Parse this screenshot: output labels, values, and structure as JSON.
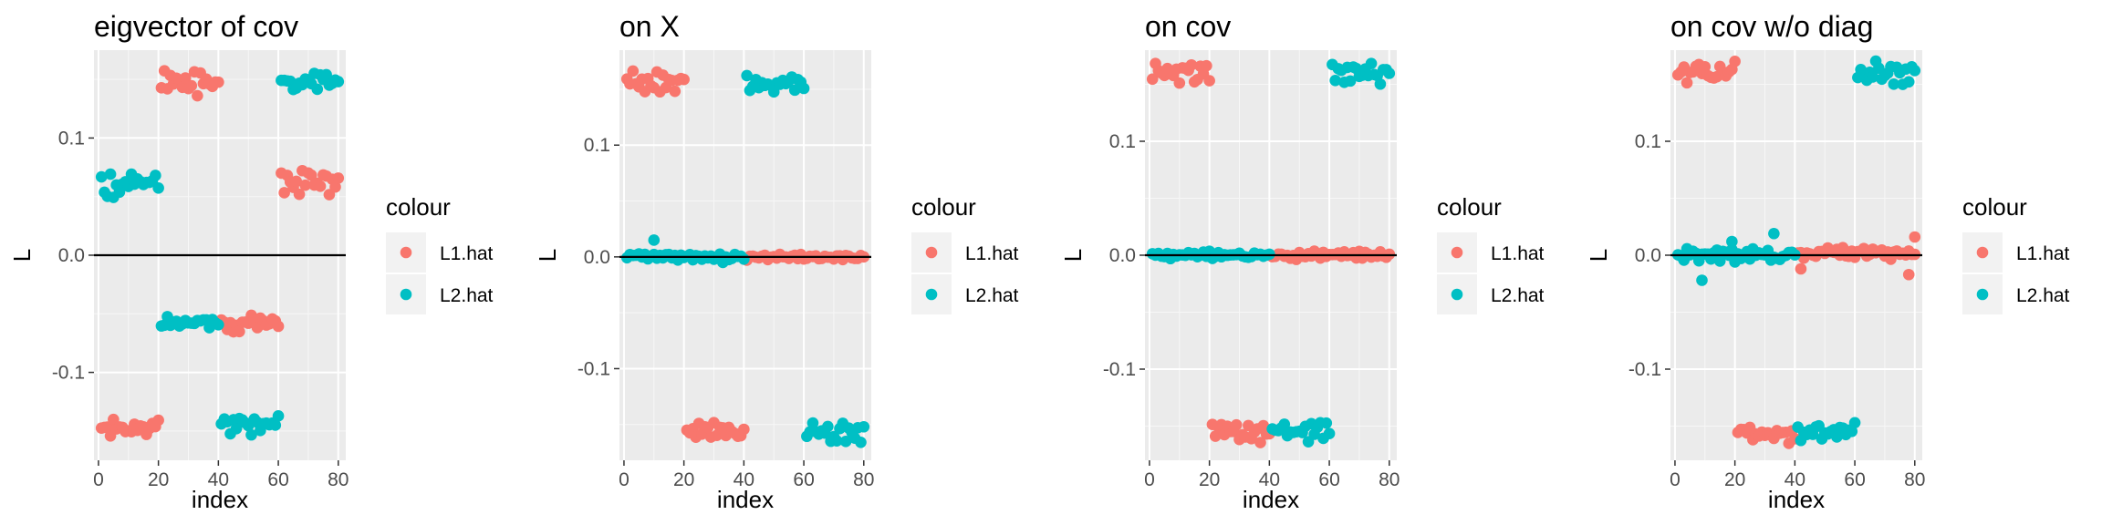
{
  "chart_data": [
    {
      "type": "scatter",
      "title": "eigvector of cov",
      "xlabel": "index",
      "ylabel": "L",
      "xlim": [
        -1.5,
        82.5
      ],
      "ylim": [
        -0.175,
        0.175
      ],
      "xticks": [
        0,
        20,
        40,
        60,
        80
      ],
      "xtick_labels": [
        "0",
        "20",
        "40",
        "60",
        "80"
      ],
      "yticks": [
        0.1,
        0.0,
        -0.1
      ],
      "ytick_labels": [
        "0.1",
        "0.0",
        "-0.1"
      ],
      "hline": 0,
      "grid": true,
      "legend": {
        "title": "colour",
        "position": "right",
        "entries": [
          "L1.hat",
          "L2.hat"
        ]
      },
      "series": [
        {
          "name": "L1.hat",
          "color": "#F8766D",
          "segments": [
            {
              "x_start": 1,
              "x_end": 20,
              "center": -0.148,
              "amplitude": 0.01
            },
            {
              "x_start": 21,
              "x_end": 40,
              "center": 0.147,
              "amplitude": 0.011
            },
            {
              "x_start": 41,
              "x_end": 60,
              "center": -0.058,
              "amplitude": 0.009
            },
            {
              "x_start": 61,
              "x_end": 80,
              "center": 0.061,
              "amplitude": 0.013
            }
          ]
        },
        {
          "name": "L2.hat",
          "color": "#00BFC4",
          "segments": [
            {
              "x_start": 1,
              "x_end": 20,
              "center": 0.06,
              "amplitude": 0.012
            },
            {
              "x_start": 21,
              "x_end": 40,
              "center": -0.058,
              "amplitude": 0.009
            },
            {
              "x_start": 41,
              "x_end": 60,
              "center": -0.145,
              "amplitude": 0.011
            },
            {
              "x_start": 61,
              "x_end": 80,
              "center": 0.148,
              "amplitude": 0.012
            }
          ]
        }
      ]
    },
    {
      "type": "scatter",
      "title": "on X",
      "xlabel": "index",
      "ylabel": "L",
      "xlim": [
        -1.5,
        82.5
      ],
      "ylim": [
        -0.182,
        0.185
      ],
      "xticks": [
        0,
        20,
        40,
        60,
        80
      ],
      "xtick_labels": [
        "0",
        "20",
        "40",
        "60",
        "80"
      ],
      "yticks": [
        0.1,
        0.0,
        -0.1
      ],
      "ytick_labels": [
        "0.1",
        "0.0",
        "-0.1"
      ],
      "hline": 0,
      "grid": true,
      "legend": {
        "title": "colour",
        "position": "right",
        "entries": [
          "L1.hat",
          "L2.hat"
        ]
      },
      "series": [
        {
          "name": "L1.hat",
          "color": "#F8766D",
          "segments": [
            {
              "x_start": 1,
              "x_end": 20,
              "center": 0.158,
              "amplitude": 0.011
            },
            {
              "x_start": 21,
              "x_end": 40,
              "center": -0.156,
              "amplitude": 0.01
            },
            {
              "x_start": 41,
              "x_end": 80,
              "center": 0.0,
              "amplitude": 0.003
            }
          ]
        },
        {
          "name": "L2.hat",
          "color": "#00BFC4",
          "segments": [
            {
              "x_start": 1,
              "x_end": 40,
              "center": 0.0,
              "amplitude": 0.003
            },
            {
              "x_start": 41,
              "x_end": 60,
              "center": 0.155,
              "amplitude": 0.009
            },
            {
              "x_start": 61,
              "x_end": 80,
              "center": -0.158,
              "amplitude": 0.01
            }
          ],
          "extra_points": [
            {
              "x": 10,
              "y": 0.015
            },
            {
              "x": 33,
              "y": -0.005
            }
          ]
        }
      ]
    },
    {
      "type": "scatter",
      "title": "on cov",
      "xlabel": "index",
      "ylabel": "L",
      "xlim": [
        -1.5,
        82.5
      ],
      "ylim": [
        -0.18,
        0.18
      ],
      "xticks": [
        0,
        20,
        40,
        60,
        80
      ],
      "xtick_labels": [
        "0",
        "20",
        "40",
        "60",
        "80"
      ],
      "yticks": [
        0.1,
        0.0,
        -0.1
      ],
      "ytick_labels": [
        "0.1",
        "0.0",
        "-0.1"
      ],
      "hline": 0,
      "grid": true,
      "legend": {
        "title": "colour",
        "position": "right",
        "entries": [
          "L1.hat",
          "L2.hat"
        ]
      },
      "series": [
        {
          "name": "L1.hat",
          "color": "#F8766D",
          "segments": [
            {
              "x_start": 1,
              "x_end": 20,
              "center": 0.16,
              "amplitude": 0.012
            },
            {
              "x_start": 21,
              "x_end": 40,
              "center": -0.156,
              "amplitude": 0.01
            },
            {
              "x_start": 41,
              "x_end": 80,
              "center": 0.0,
              "amplitude": 0.004
            }
          ]
        },
        {
          "name": "L2.hat",
          "color": "#00BFC4",
          "segments": [
            {
              "x_start": 1,
              "x_end": 40,
              "center": 0.0,
              "amplitude": 0.004
            },
            {
              "x_start": 41,
              "x_end": 60,
              "center": -0.154,
              "amplitude": 0.01
            },
            {
              "x_start": 61,
              "x_end": 80,
              "center": 0.16,
              "amplitude": 0.012
            }
          ]
        }
      ]
    },
    {
      "type": "scatter",
      "title": "on cov w/o diag",
      "xlabel": "index",
      "ylabel": "L",
      "xlim": [
        -1.5,
        82.5
      ],
      "ylim": [
        -0.18,
        0.18
      ],
      "xticks": [
        0,
        20,
        40,
        60,
        80
      ],
      "xtick_labels": [
        "0",
        "20",
        "40",
        "60",
        "80"
      ],
      "yticks": [
        0.1,
        0.0,
        -0.1
      ],
      "ytick_labels": [
        "0.1",
        "0.0",
        "-0.1"
      ],
      "hline": 0,
      "grid": true,
      "legend": {
        "title": "colour",
        "position": "right",
        "entries": [
          "L1.hat",
          "L2.hat"
        ]
      },
      "series": [
        {
          "name": "L1.hat",
          "color": "#F8766D",
          "segments": [
            {
              "x_start": 1,
              "x_end": 20,
              "center": 0.16,
              "amplitude": 0.012
            },
            {
              "x_start": 21,
              "x_end": 40,
              "center": -0.156,
              "amplitude": 0.01
            },
            {
              "x_start": 41,
              "x_end": 80,
              "center": 0.002,
              "amplitude": 0.006
            }
          ],
          "extra_points": [
            {
              "x": 42,
              "y": -0.012
            },
            {
              "x": 78,
              "y": -0.017
            },
            {
              "x": 80,
              "y": 0.016
            }
          ]
        },
        {
          "name": "L2.hat",
          "color": "#00BFC4",
          "segments": [
            {
              "x_start": 1,
              "x_end": 40,
              "center": 0.0,
              "amplitude": 0.006
            },
            {
              "x_start": 41,
              "x_end": 60,
              "center": -0.154,
              "amplitude": 0.01
            },
            {
              "x_start": 61,
              "x_end": 80,
              "center": 0.16,
              "amplitude": 0.012
            }
          ],
          "extra_points": [
            {
              "x": 9,
              "y": -0.022
            },
            {
              "x": 19,
              "y": 0.012
            },
            {
              "x": 33,
              "y": 0.019
            }
          ]
        }
      ]
    }
  ]
}
